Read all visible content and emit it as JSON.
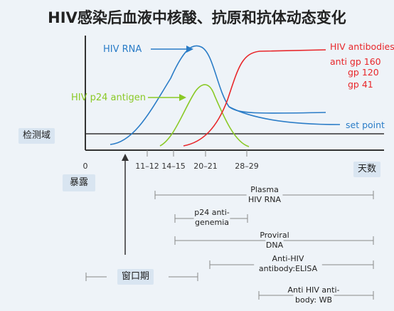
{
  "title": "HIV感染后血液中核酸、抗原和抗体动态变化",
  "labels": {
    "detection": "检测域",
    "exposure": "暴露",
    "days": "天数",
    "window": "窗口期"
  },
  "colors": {
    "rna": "#2a7cc7",
    "p24": "#8ac926",
    "antibody": "#e8262a",
    "axis": "#333333",
    "bar": "#888888"
  },
  "chart_data": {
    "type": "line",
    "xlabel": "天数",
    "ylabel": "",
    "x_ticks": [
      "0",
      "11–12",
      "14–15",
      "20–21",
      "28–29"
    ],
    "series": [
      {
        "name": "HIV RNA",
        "color": "#2a7cc7",
        "description_points": [
          [
            0,
            0
          ],
          [
            11,
            0.35
          ],
          [
            15,
            0.8
          ],
          [
            20,
            1.0
          ],
          [
            24,
            0.7
          ],
          [
            28,
            0.42
          ],
          [
            36,
            0.4
          ],
          [
            50,
            0.35
          ]
        ]
      },
      {
        "name": "HIV p24 antigen",
        "color": "#8ac926",
        "description_points": [
          [
            13,
            0.05
          ],
          [
            17,
            0.5
          ],
          [
            21,
            0.72
          ],
          [
            24,
            0.45
          ],
          [
            29,
            0.06
          ]
        ]
      },
      {
        "name": "HIV antibodies",
        "color": "#e8262a",
        "description_points": [
          [
            17,
            0
          ],
          [
            24,
            0.3
          ],
          [
            28,
            0.7
          ],
          [
            31,
            0.9
          ],
          [
            35,
            0.9
          ],
          [
            50,
            0.9
          ]
        ]
      }
    ],
    "antibody_labels": [
      "anti gp 160",
      "gp 120",
      "gp 41"
    ],
    "set_point_label": "set point",
    "threshold_label": "检测域"
  },
  "timeline": [
    {
      "label": "Plasma\nHIV RNA"
    },
    {
      "label": "p24 anti-\ngenemia"
    },
    {
      "label": "Proviral\nDNA"
    },
    {
      "label": "Anti-HIV\nantibody:ELISA"
    },
    {
      "label": "Anti HIV anti-\nbody: WB"
    }
  ]
}
